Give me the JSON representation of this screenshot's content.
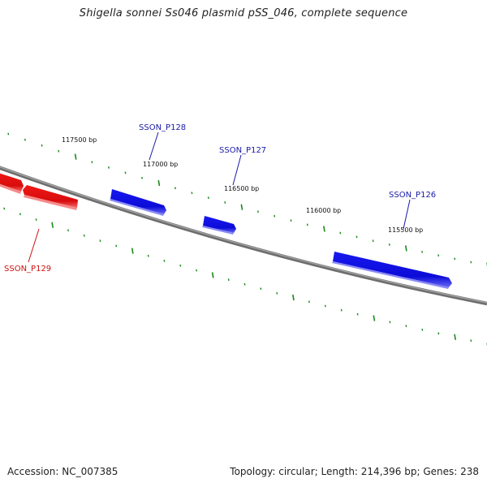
{
  "title": "Shigella sonnei Ss046 plasmid pSS_046, complete sequence",
  "footer": {
    "accession": "Accession: NC_007385",
    "summary": "Topology: circular; Length: 214,396 bp; Genes: 238"
  },
  "colors": {
    "backbone": "#808080",
    "forward_gene": "#1010e8",
    "reverse_gene": "#e81010",
    "tick": "#1a8a1a",
    "forward_label": "#1a1aa8",
    "reverse_label": "#cc1111"
  },
  "tick_labels": [
    "117500 bp",
    "117000 bp",
    "116500 bp",
    "116000 bp",
    "115500 bp"
  ],
  "genes": [
    {
      "name": "SSON_P128",
      "strand": "forward"
    },
    {
      "name": "SSON_P127",
      "strand": "forward"
    },
    {
      "name": "SSON_P126",
      "strand": "forward"
    },
    {
      "name": "SSON_P129",
      "strand": "reverse"
    }
  ]
}
